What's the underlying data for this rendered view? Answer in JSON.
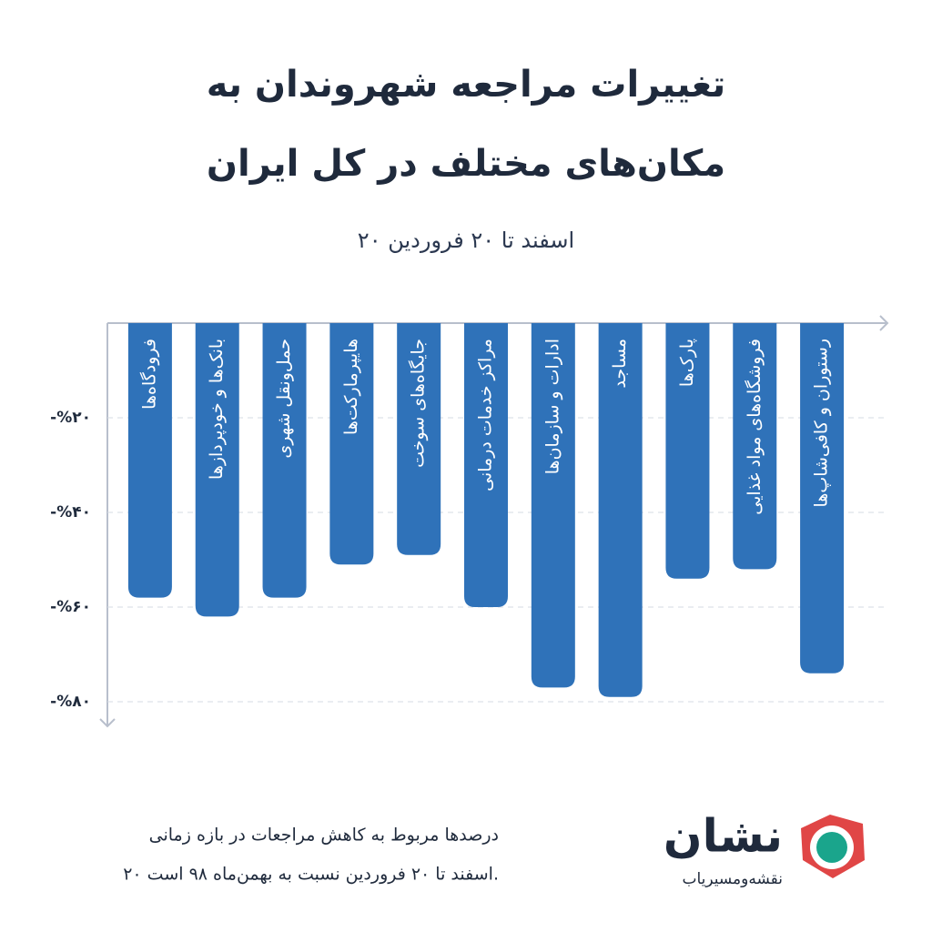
{
  "chart_data": {
    "type": "bar",
    "title": [
      "تغییرات مراجعه شهروندان به",
      "مکان‌های مختلف در کل ایران"
    ],
    "subtitle": "۲۰ اسفند تا ۲۰ فروردین",
    "categories": [
      "فرودگاه‌ها",
      "بانک‌ها و خودپردازها",
      "حمل‌ونقل شهری",
      "هایپرمارکت‌ها",
      "جایگاه‌های سوخت",
      "مراکز خدمات درمانی",
      "ادارات و سازمان‌ها",
      "مساجد",
      "پارک‌ها",
      "فروشگاه‌های مواد غذایی",
      "رستوران و کافی‌شاپ‌ها"
    ],
    "values": [
      -58,
      -62,
      -58,
      -51,
      -49,
      -60,
      -77,
      -79,
      -54,
      -52,
      -74
    ],
    "color": "#2f72b9",
    "ylim": [
      0,
      -85
    ],
    "yticks": [
      {
        "value": -20,
        "label": "-%۲۰"
      },
      {
        "value": -40,
        "label": "-%۴۰"
      },
      {
        "value": -60,
        "label": "-%۶۰"
      },
      {
        "value": -80,
        "label": "-%۸۰"
      }
    ],
    "grid": true,
    "note": [
      "درصدها مربوط به کاهش مراجعات در بازه زمانی",
      "۲۰ اسفند تا ۲۰ فروردین نسبت به بهمن‌ماه ۹۸ است."
    ]
  },
  "brand": {
    "name": "نشان",
    "tagline": "نقشه‌ومسیریاب"
  }
}
